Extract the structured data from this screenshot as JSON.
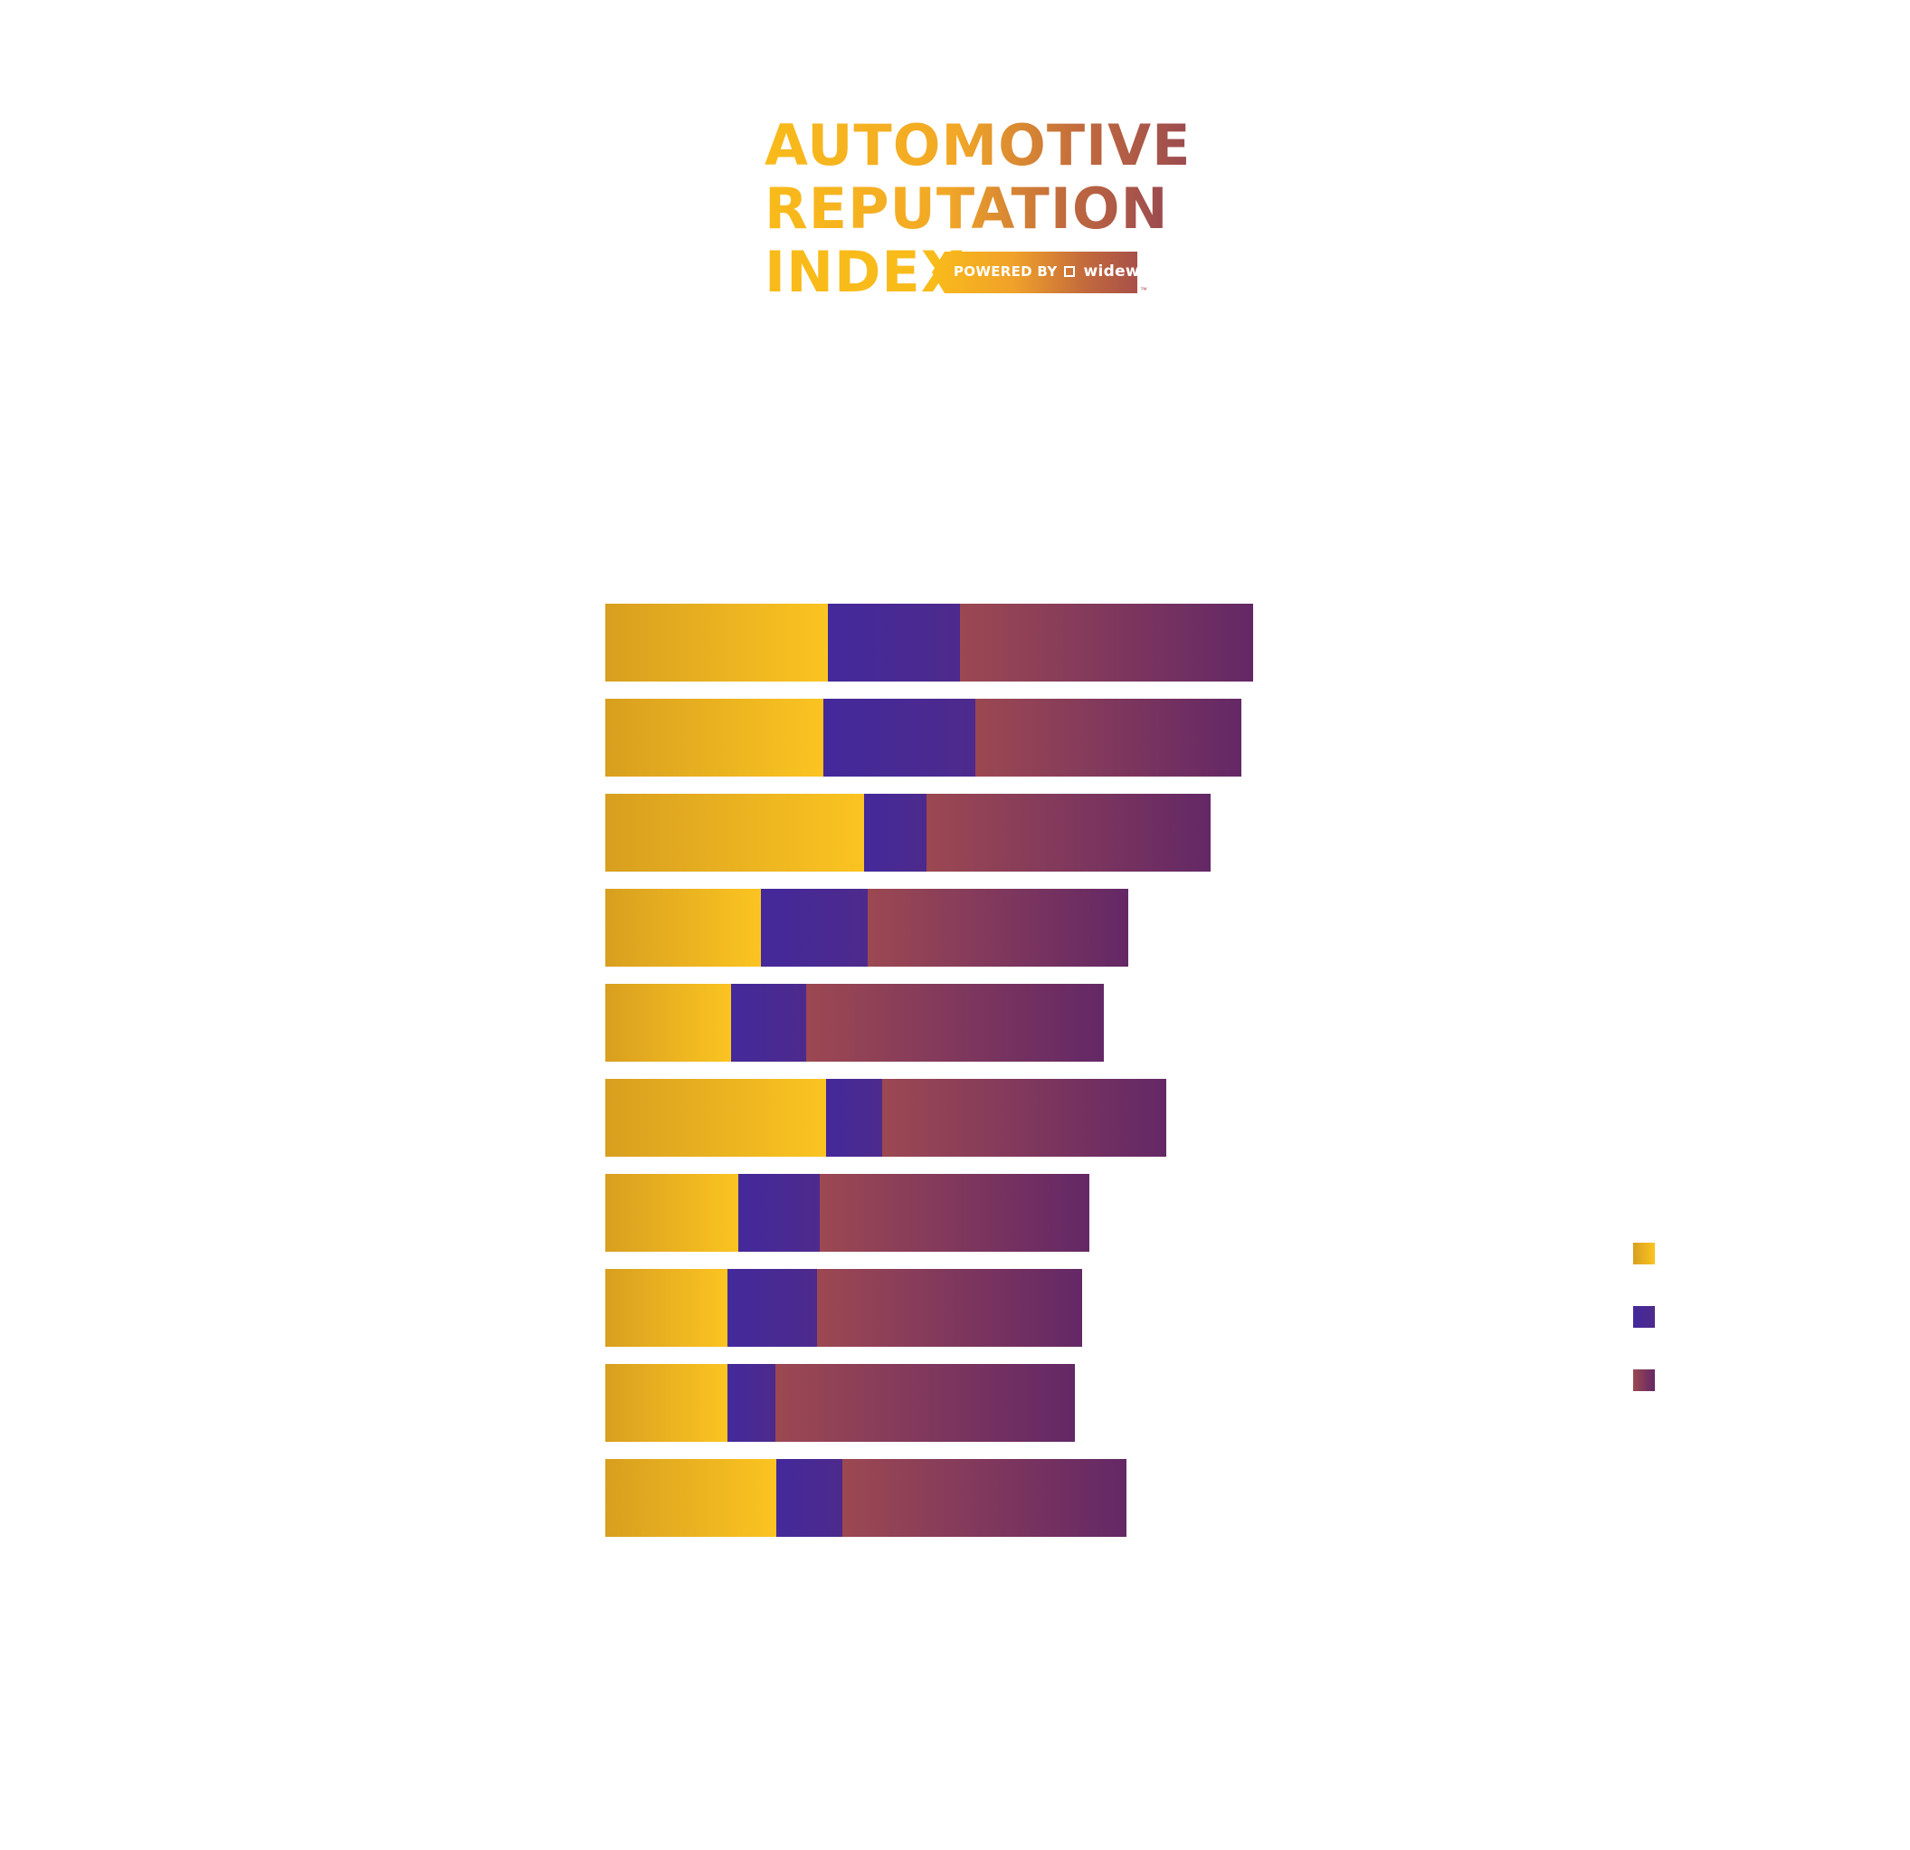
{
  "logo": {
    "line1": "AUTOMOTIVE",
    "line2": "REPUTATION",
    "line3": "INDEX",
    "badge_prefix": "POWERED BY",
    "badge_brand": "widewail",
    "trademark": "™"
  },
  "colors": {
    "series1_start": "#d89f1f",
    "series1_end": "#fbc421",
    "series2_start": "#44299b",
    "series2_end": "#4d2a8c",
    "series3_start": "#9c4852",
    "series3_end": "#642866"
  },
  "chart_data": {
    "type": "bar",
    "orientation": "horizontal",
    "stacked": true,
    "categories": [
      "",
      "",
      "",
      "",
      "",
      "",
      "",
      "",
      "",
      ""
    ],
    "series": [
      {
        "values": [
          246,
          241,
          286,
          172,
          139,
          244,
          147,
          135,
          135,
          189
        ]
      },
      {
        "values": [
          146,
          168,
          69,
          118,
          83,
          62,
          90,
          99,
          53,
          73
        ]
      },
      {
        "values": [
          324,
          294,
          314,
          288,
          329,
          314,
          298,
          293,
          331,
          314
        ]
      }
    ],
    "xlim": [
      0,
      716
    ],
    "grid": false,
    "legend": "right"
  }
}
